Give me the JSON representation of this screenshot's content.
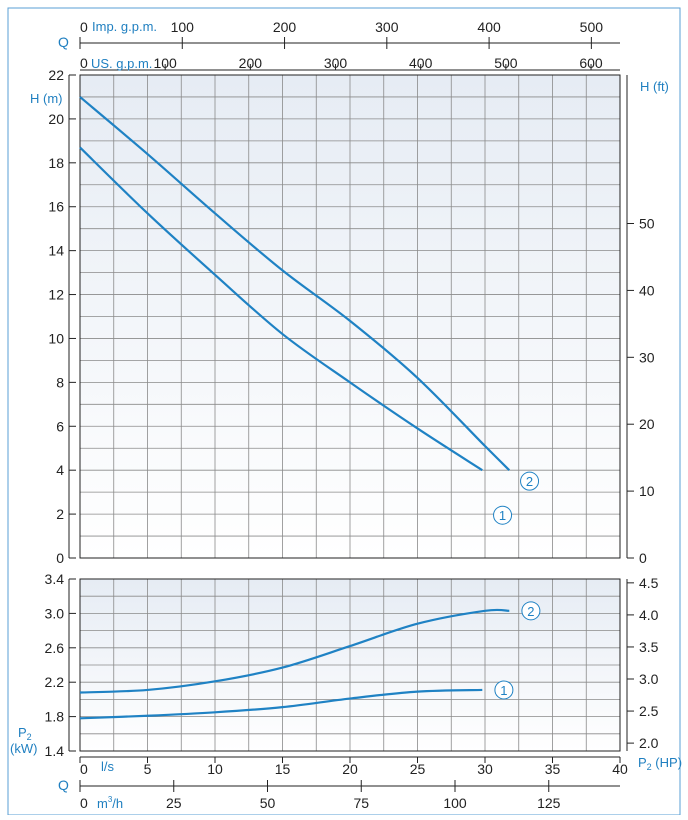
{
  "colors": {
    "curve": "#1f82c4",
    "accent": "#1f7fc0",
    "panel_top": "#e6ecf4",
    "panel_bottom": "#ffffff",
    "frame": "#5a9fd4"
  },
  "labels": {
    "q_top": "Q",
    "q_bottom": "Q",
    "imp_gpm": "Imp. g.p.m.",
    "us_gpm": "US. g.p.m.",
    "h_m": "H (m)",
    "h_ft": "H (ft)",
    "p2_kw_line1": "P",
    "p2_kw_sub": "2",
    "p2_kw_line2": "(kW)",
    "p2_hp": "P",
    "p2_hp_sub": "2",
    "p2_hp_unit": " (HP)",
    "ls": "l/s",
    "m3h": "m",
    "m3h_sup": "3",
    "m3h_tail": "/h"
  },
  "chart_data": [
    {
      "type": "line",
      "panel": "head",
      "x_unit": "l/s",
      "y_unit": "H (m)",
      "xlim": [
        0,
        40
      ],
      "ylim": [
        0,
        22
      ],
      "y_ticks": [
        0,
        2,
        4,
        6,
        8,
        10,
        12,
        14,
        16,
        18,
        20,
        22
      ],
      "y2_unit": "H (ft)",
      "y2_ticks": [
        0,
        10,
        20,
        30,
        40,
        50
      ],
      "grid": true,
      "series": [
        {
          "name": "1",
          "x": [
            0,
            5,
            10,
            15,
            20,
            25,
            29.8
          ],
          "y": [
            18.7,
            15.7,
            12.9,
            10.2,
            8.0,
            5.9,
            4.0
          ]
        },
        {
          "name": "2",
          "x": [
            0,
            5,
            10,
            15,
            20,
            25,
            30,
            31.8
          ],
          "y": [
            21.0,
            18.4,
            15.7,
            13.1,
            10.8,
            8.2,
            5.1,
            4.0
          ]
        }
      ]
    },
    {
      "type": "line",
      "panel": "power",
      "x_unit": "l/s",
      "y_unit": "P2 (kW)",
      "xlim": [
        0,
        40
      ],
      "ylim": [
        1.4,
        3.4
      ],
      "y_ticks": [
        1.4,
        1.8,
        2.2,
        2.6,
        3.0,
        3.4
      ],
      "y2_unit": "P2 (HP)",
      "y2_ticks": [
        2.0,
        2.5,
        3.0,
        3.5,
        4.0,
        4.5
      ],
      "grid": true,
      "series": [
        {
          "name": "1",
          "x": [
            0,
            5,
            10,
            15,
            20,
            25,
            29.8
          ],
          "y": [
            1.78,
            1.81,
            1.85,
            1.91,
            2.01,
            2.09,
            2.11
          ]
        },
        {
          "name": "2",
          "x": [
            0,
            5,
            10,
            15,
            20,
            25,
            30,
            31.8
          ],
          "y": [
            2.08,
            2.11,
            2.21,
            2.37,
            2.62,
            2.88,
            3.03,
            3.03
          ]
        }
      ]
    }
  ],
  "axes": {
    "ls_ticks": [
      "0",
      "5",
      "10",
      "15",
      "20",
      "25",
      "30",
      "35",
      "40"
    ],
    "ls_values": [
      0,
      5,
      10,
      15,
      20,
      25,
      30,
      35,
      40
    ],
    "m3h_ticks": [
      "0",
      "25",
      "50",
      "75",
      "100",
      "125"
    ],
    "m3h_values": [
      0,
      25,
      50,
      75,
      100,
      125
    ],
    "m3h_max": 144,
    "imp_ticks": [
      "0",
      "100",
      "200",
      "300",
      "400",
      "500"
    ],
    "imp_values": [
      0,
      100,
      200,
      300,
      400,
      500
    ],
    "imp_max": 528,
    "us_ticks": [
      "0",
      "100",
      "200",
      "300",
      "400",
      "500",
      "600"
    ],
    "us_values": [
      0,
      100,
      200,
      300,
      400,
      500,
      600
    ],
    "us_max": 634,
    "h_ft_max": 72.2,
    "hp_min": 1.877,
    "hp_max": 4.56
  }
}
